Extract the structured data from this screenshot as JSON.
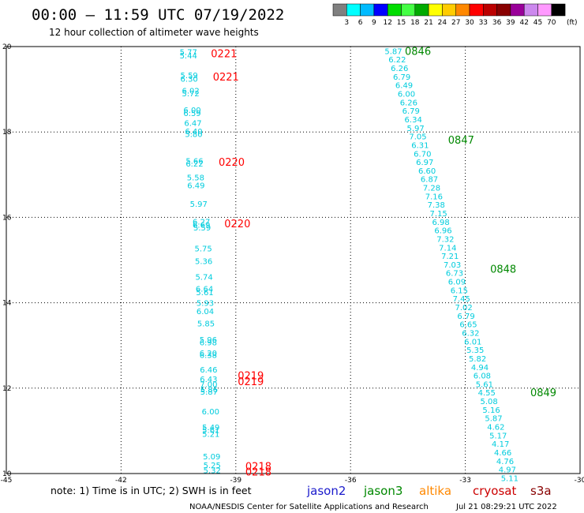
{
  "header": {
    "title": "00:00 – 11:59 UTC 07/19/2022",
    "subtitle": "12 hour collection of altimeter wave heights"
  },
  "legend": {
    "colors": [
      "#808080",
      "#00ffff",
      "#00bbff",
      "#0000ff",
      "#00dd00",
      "#44ff44",
      "#00aa00",
      "#ffff00",
      "#ffcc00",
      "#ff8800",
      "#ff0000",
      "#bb0000",
      "#880000",
      "#990099",
      "#cc88ee",
      "#ff99ff",
      "#000000"
    ],
    "ticks": [
      "3",
      "6",
      "9",
      "12",
      "15",
      "18",
      "21",
      "24",
      "27",
      "30",
      "33",
      "36",
      "39",
      "42",
      "45",
      "70"
    ],
    "unit": "(ft)"
  },
  "footer": {
    "note": "note: 1) Time is in UTC; 2) SWH is in feet",
    "satellites": [
      {
        "name": "jason2",
        "color": "#1a1acc"
      },
      {
        "name": "jason3",
        "color": "#008800"
      },
      {
        "name": "altika",
        "color": "#ff8800"
      },
      {
        "name": "cryosat",
        "color": "#cc0000"
      },
      {
        "name": "s3a",
        "color": "#880000"
      }
    ],
    "credit": "NOAA/NESDIS Center for Satellite Applications and Research",
    "timestamp": "Jul 21 08:29:21 UTC 2022"
  },
  "chart_data": {
    "type": "scatter",
    "title": "00:00 – 11:59 UTC 07/19/2022",
    "subtitle": "12 hour collection of altimeter wave heights",
    "xlim": [
      -45,
      -30
    ],
    "ylim": [
      10,
      20
    ],
    "xticks": [
      "-45",
      "-42",
      "-39",
      "-36",
      "-33",
      "-30"
    ],
    "yticks": [
      "10",
      "12",
      "14",
      "16",
      "18",
      "20"
    ],
    "grid": true,
    "series": [
      {
        "name": "cryosat",
        "color": "#00ccdd",
        "points": [
          {
            "lon": -40.24,
            "lat": 19.88,
            "swh": "5.77"
          },
          {
            "lon": -40.24,
            "lat": 19.8,
            "swh": "5.44"
          },
          {
            "lon": -40.22,
            "lat": 19.33,
            "swh": "5.59"
          },
          {
            "lon": -40.22,
            "lat": 19.25,
            "swh": "6.30"
          },
          {
            "lon": -40.18,
            "lat": 18.97,
            "swh": "6.02"
          },
          {
            "lon": -40.18,
            "lat": 18.91,
            "swh": "5.72"
          },
          {
            "lon": -40.14,
            "lat": 18.52,
            "swh": "6.00"
          },
          {
            "lon": -40.14,
            "lat": 18.45,
            "swh": "6.59"
          },
          {
            "lon": -40.12,
            "lat": 18.22,
            "swh": "6.47"
          },
          {
            "lon": -40.1,
            "lat": 18.02,
            "swh": "6.40"
          },
          {
            "lon": -40.1,
            "lat": 17.96,
            "swh": "5.80"
          },
          {
            "lon": -40.08,
            "lat": 17.33,
            "swh": "5.66"
          },
          {
            "lon": -40.08,
            "lat": 17.26,
            "swh": "6.22"
          },
          {
            "lon": -40.05,
            "lat": 16.94,
            "swh": "5.58"
          },
          {
            "lon": -40.04,
            "lat": 16.76,
            "swh": "6.49"
          },
          {
            "lon": -39.97,
            "lat": 16.32,
            "swh": "5.97"
          },
          {
            "lon": -39.9,
            "lat": 15.91,
            "swh": "6.27"
          },
          {
            "lon": -39.9,
            "lat": 15.83,
            "swh": "6.69"
          },
          {
            "lon": -39.88,
            "lat": 15.77,
            "swh": "5.59"
          },
          {
            "lon": -39.85,
            "lat": 15.28,
            "swh": "5.75"
          },
          {
            "lon": -39.84,
            "lat": 14.98,
            "swh": "5.36"
          },
          {
            "lon": -39.83,
            "lat": 14.61,
            "swh": "5.74"
          },
          {
            "lon": -39.82,
            "lat": 14.33,
            "swh": "6.64"
          },
          {
            "lon": -39.81,
            "lat": 14.25,
            "swh": "5.61"
          },
          {
            "lon": -39.8,
            "lat": 14.0,
            "swh": "5.93"
          },
          {
            "lon": -39.8,
            "lat": 13.81,
            "swh": "6.04"
          },
          {
            "lon": -39.78,
            "lat": 13.52,
            "swh": "5.85"
          },
          {
            "lon": -39.72,
            "lat": 13.14,
            "swh": "5.96"
          },
          {
            "lon": -39.72,
            "lat": 13.08,
            "swh": "6.98"
          },
          {
            "lon": -39.72,
            "lat": 12.83,
            "swh": "6.20"
          },
          {
            "lon": -39.72,
            "lat": 12.78,
            "swh": "6.38"
          },
          {
            "lon": -39.71,
            "lat": 12.44,
            "swh": "6.46"
          },
          {
            "lon": -39.71,
            "lat": 12.22,
            "swh": "6.43"
          },
          {
            "lon": -39.71,
            "lat": 12.1,
            "swh": "7.00"
          },
          {
            "lon": -39.7,
            "lat": 11.98,
            "swh": "5.86"
          },
          {
            "lon": -39.7,
            "lat": 11.92,
            "swh": "5.87"
          },
          {
            "lon": -39.66,
            "lat": 11.46,
            "swh": "6.00"
          },
          {
            "lon": -39.65,
            "lat": 11.09,
            "swh": "5.49"
          },
          {
            "lon": -39.65,
            "lat": 11.03,
            "swh": "5.61"
          },
          {
            "lon": -39.65,
            "lat": 10.93,
            "swh": "5.21"
          },
          {
            "lon": -39.63,
            "lat": 10.41,
            "swh": "5.09"
          },
          {
            "lon": -39.62,
            "lat": 10.2,
            "swh": "5.25"
          },
          {
            "lon": -39.62,
            "lat": 10.08,
            "swh": "5.32"
          }
        ]
      },
      {
        "name": "jason3",
        "color": "#00ccdd",
        "points": [
          {
            "lon": -34.88,
            "lat": 19.9,
            "swh": "5.87"
          },
          {
            "lon": -34.78,
            "lat": 19.7,
            "swh": "6.22"
          },
          {
            "lon": -34.72,
            "lat": 19.5,
            "swh": "6.26"
          },
          {
            "lon": -34.66,
            "lat": 19.3,
            "swh": "6.79"
          },
          {
            "lon": -34.6,
            "lat": 19.1,
            "swh": "6.49"
          },
          {
            "lon": -34.54,
            "lat": 18.9,
            "swh": "6.00"
          },
          {
            "lon": -34.48,
            "lat": 18.7,
            "swh": "6.26"
          },
          {
            "lon": -34.42,
            "lat": 18.5,
            "swh": "6.79"
          },
          {
            "lon": -34.36,
            "lat": 18.3,
            "swh": "6.34"
          },
          {
            "lon": -34.3,
            "lat": 18.1,
            "swh": "5.97"
          },
          {
            "lon": -34.24,
            "lat": 17.9,
            "swh": "7.05"
          },
          {
            "lon": -34.18,
            "lat": 17.7,
            "swh": "6.31"
          },
          {
            "lon": -34.12,
            "lat": 17.5,
            "swh": "6.70"
          },
          {
            "lon": -34.06,
            "lat": 17.3,
            "swh": "6.97"
          },
          {
            "lon": -34.0,
            "lat": 17.1,
            "swh": "6.60"
          },
          {
            "lon": -33.94,
            "lat": 16.9,
            "swh": "6.87"
          },
          {
            "lon": -33.88,
            "lat": 16.7,
            "swh": "7.28"
          },
          {
            "lon": -33.82,
            "lat": 16.5,
            "swh": "7.16"
          },
          {
            "lon": -33.76,
            "lat": 16.3,
            "swh": "7.38"
          },
          {
            "lon": -33.7,
            "lat": 16.1,
            "swh": "7.15"
          },
          {
            "lon": -33.64,
            "lat": 15.9,
            "swh": "6.98"
          },
          {
            "lon": -33.58,
            "lat": 15.7,
            "swh": "6.96"
          },
          {
            "lon": -33.52,
            "lat": 15.5,
            "swh": "7.32"
          },
          {
            "lon": -33.46,
            "lat": 15.3,
            "swh": "7.14"
          },
          {
            "lon": -33.4,
            "lat": 15.1,
            "swh": "7.21"
          },
          {
            "lon": -33.34,
            "lat": 14.9,
            "swh": "7.03"
          },
          {
            "lon": -33.28,
            "lat": 14.7,
            "swh": "6.73"
          },
          {
            "lon": -33.22,
            "lat": 14.5,
            "swh": "6.09"
          },
          {
            "lon": -33.16,
            "lat": 14.3,
            "swh": "6.15"
          },
          {
            "lon": -33.1,
            "lat": 14.1,
            "swh": "7.45"
          },
          {
            "lon": -33.04,
            "lat": 13.9,
            "swh": "7.02"
          },
          {
            "lon": -32.98,
            "lat": 13.7,
            "swh": "6.79"
          },
          {
            "lon": -32.92,
            "lat": 13.5,
            "swh": "6.65"
          },
          {
            "lon": -32.86,
            "lat": 13.3,
            "swh": "6.32"
          },
          {
            "lon": -32.8,
            "lat": 13.1,
            "swh": "6.01"
          },
          {
            "lon": -32.74,
            "lat": 12.9,
            "swh": "5.35"
          },
          {
            "lon": -32.68,
            "lat": 12.7,
            "swh": "5.82"
          },
          {
            "lon": -32.62,
            "lat": 12.5,
            "swh": "4.94"
          },
          {
            "lon": -32.56,
            "lat": 12.3,
            "swh": "6.08"
          },
          {
            "lon": -32.5,
            "lat": 12.1,
            "swh": "5.61"
          },
          {
            "lon": -32.44,
            "lat": 11.9,
            "swh": "4.55"
          },
          {
            "lon": -32.38,
            "lat": 11.7,
            "swh": "5.08"
          },
          {
            "lon": -32.32,
            "lat": 11.5,
            "swh": "5.16"
          },
          {
            "lon": -32.26,
            "lat": 11.3,
            "swh": "5.87"
          },
          {
            "lon": -32.2,
            "lat": 11.1,
            "swh": "4.62"
          },
          {
            "lon": -32.14,
            "lat": 10.9,
            "swh": "5.17"
          },
          {
            "lon": -32.08,
            "lat": 10.7,
            "swh": "4.17"
          },
          {
            "lon": -32.02,
            "lat": 10.5,
            "swh": "4.66"
          },
          {
            "lon": -31.96,
            "lat": 10.3,
            "swh": "4.76"
          },
          {
            "lon": -31.9,
            "lat": 10.1,
            "swh": "4.97"
          },
          {
            "lon": -31.84,
            "lat": 9.9,
            "swh": "5.11"
          }
        ]
      }
    ],
    "pass_times": [
      {
        "text": "0221",
        "lon": -39.65,
        "lat": 19.84,
        "color": "#ff0000"
      },
      {
        "text": "0221",
        "lon": -39.6,
        "lat": 19.3,
        "color": "#ff0000"
      },
      {
        "text": "0220",
        "lon": -39.45,
        "lat": 17.3,
        "color": "#ff0000"
      },
      {
        "text": "0220",
        "lon": -39.3,
        "lat": 15.86,
        "color": "#ff0000"
      },
      {
        "text": "0219",
        "lon": -38.95,
        "lat": 12.3,
        "color": "#ff0000"
      },
      {
        "text": "0219",
        "lon": -38.95,
        "lat": 12.16,
        "color": "#ff0000"
      },
      {
        "text": "0218",
        "lon": -38.75,
        "lat": 10.18,
        "color": "#ff0000"
      },
      {
        "text": "0218",
        "lon": -38.75,
        "lat": 10.05,
        "color": "#ff0000"
      },
      {
        "text": "0846",
        "lon": -34.58,
        "lat": 19.9,
        "color": "#008800"
      },
      {
        "text": "0847",
        "lon": -33.45,
        "lat": 17.82,
        "color": "#008800"
      },
      {
        "text": "0848",
        "lon": -32.35,
        "lat": 14.8,
        "color": "#008800"
      },
      {
        "text": "0849",
        "lon": -31.3,
        "lat": 11.9,
        "color": "#008800"
      }
    ]
  }
}
